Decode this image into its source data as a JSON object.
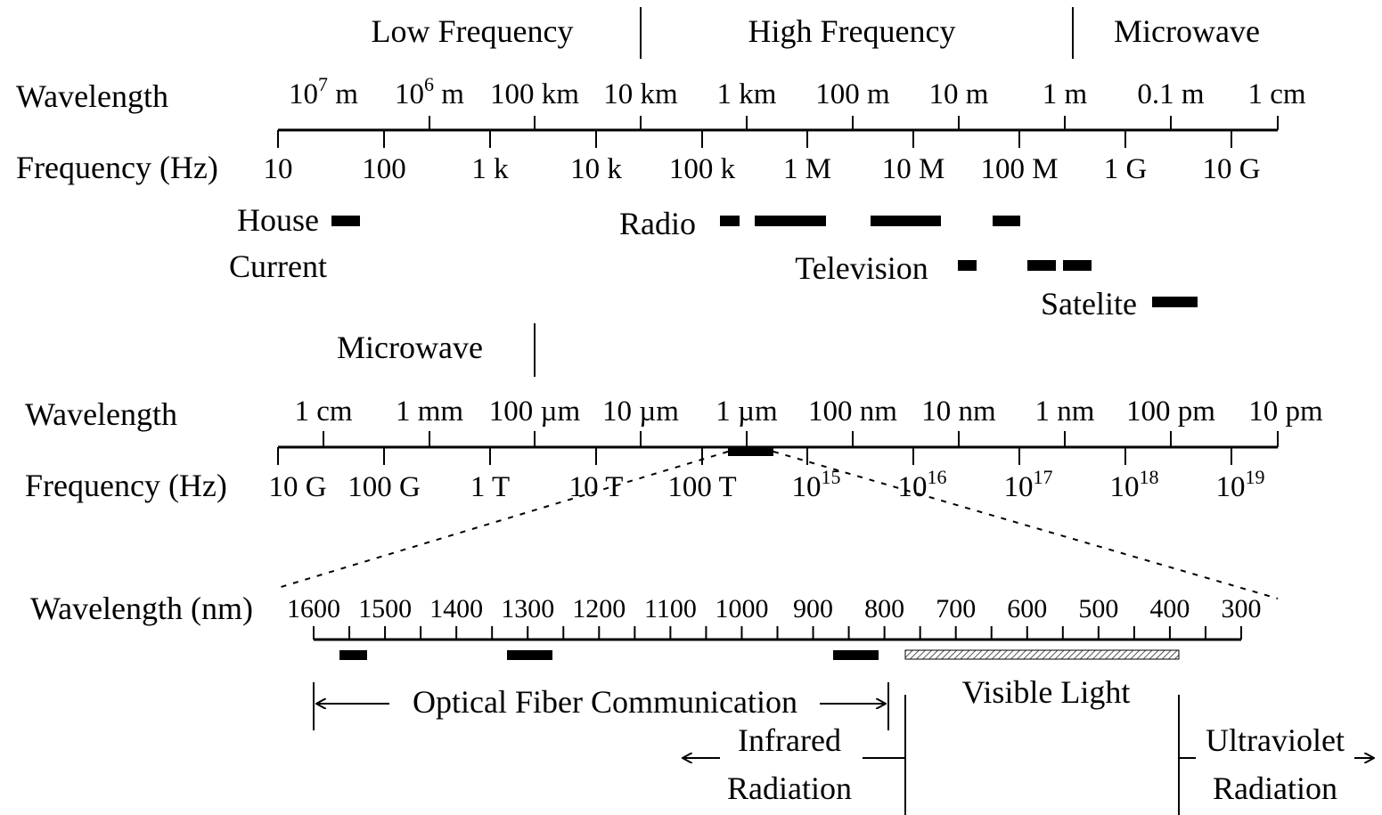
{
  "section1": {
    "bands": [
      "Low Frequency",
      "High Frequency",
      "Microwave"
    ],
    "wavelength_label": "Wavelength",
    "frequency_label": "Frequency (Hz)",
    "wavelength_ticks": [
      {
        "base": "10",
        "sup": "7",
        "unit": "m"
      },
      {
        "base": "10",
        "sup": "6",
        "unit": "m"
      },
      {
        "text": "100 km"
      },
      {
        "text": "10 km"
      },
      {
        "text": "1 km"
      },
      {
        "text": "100 m"
      },
      {
        "text": "10 m"
      },
      {
        "text": "1 m"
      },
      {
        "text": "0.1 m"
      },
      {
        "text": "1 cm"
      }
    ],
    "frequency_ticks": [
      "10",
      "100",
      "1 k",
      "10 k",
      "100 k",
      "1 M",
      "10 M",
      "100 M",
      "1 G",
      "10 G"
    ],
    "applications": [
      {
        "label_lines": [
          "House",
          "Current"
        ]
      },
      {
        "label_lines": [
          "Radio"
        ]
      },
      {
        "label_lines": [
          "Television"
        ]
      },
      {
        "label_lines": [
          "Satelite"
        ]
      }
    ]
  },
  "section2": {
    "band": "Microwave",
    "wavelength_label": "Wavelength",
    "frequency_label": "Frequency (Hz)",
    "wavelength_ticks": [
      "1 cm",
      "1 mm",
      "100 µm",
      "10 µm",
      "1 µm",
      "100 nm",
      "10 nm",
      "1 nm",
      "100 pm",
      "10 pm"
    ],
    "frequency_ticks": [
      {
        "text": "10 G"
      },
      {
        "text": "100 G"
      },
      {
        "text": "1 T"
      },
      {
        "text": "10 T"
      },
      {
        "text": "100 T"
      },
      {
        "base": "10",
        "sup": "15"
      },
      {
        "base": "10",
        "sup": "16"
      },
      {
        "base": "10",
        "sup": "17"
      },
      {
        "base": "10",
        "sup": "18"
      },
      {
        "base": "10",
        "sup": "19"
      }
    ]
  },
  "section3": {
    "wavelength_label": "Wavelength (nm)",
    "ticks": [
      "1600",
      "1500",
      "1400",
      "1300",
      "1200",
      "1100",
      "1000",
      "900",
      "800",
      "700",
      "600",
      "500",
      "400",
      "300"
    ],
    "optical_fiber_label": "Optical Fiber Communication",
    "visible_label": "Visible Light",
    "infrared_lines": [
      "Infrared",
      "Radiation"
    ],
    "ultraviolet_lines": [
      "Ultraviolet",
      "Radiation"
    ]
  }
}
